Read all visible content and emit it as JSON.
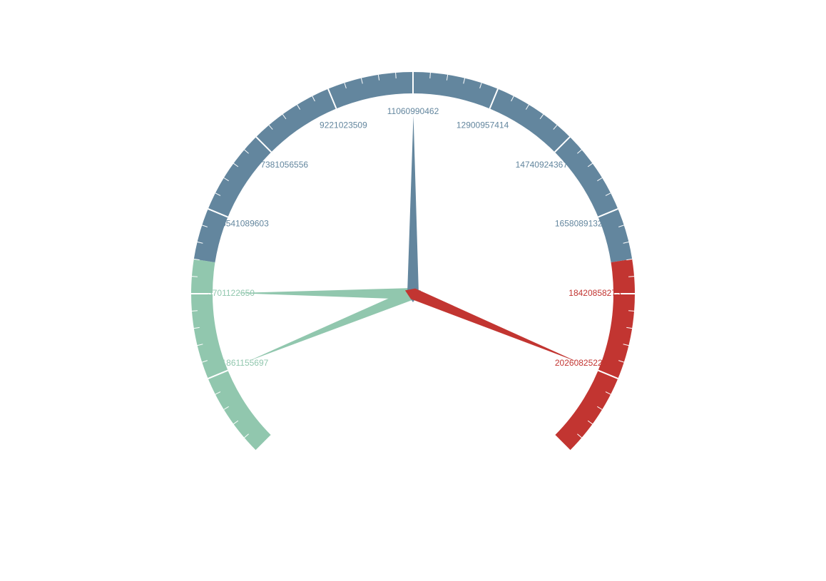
{
  "chart_data": {
    "type": "gauge",
    "min": 1,
    "max": 22100792179,
    "tick_labels": [
      "1861155697",
      "3701122650",
      "5541089603",
      "7381056556",
      "9221023509",
      "11060990462",
      "12900957414",
      "14740924367",
      "16580891320",
      "18420858273",
      "20260825226"
    ],
    "bands": [
      {
        "from": 1,
        "to": 0.2,
        "color": "#91c7ae"
      },
      {
        "from": 0.2,
        "to": 0.8,
        "color": "#63869e"
      },
      {
        "from": 0.8,
        "to": 1.0,
        "color": "#c23531"
      }
    ],
    "pointers": [
      {
        "value": 1861155697,
        "color": "#91c7ae"
      },
      {
        "value": 3701122650,
        "color": "#91c7ae"
      },
      {
        "value": 11060990462,
        "color": "#63869e"
      },
      {
        "value": 20260825226,
        "color": "#c23531"
      }
    ]
  }
}
